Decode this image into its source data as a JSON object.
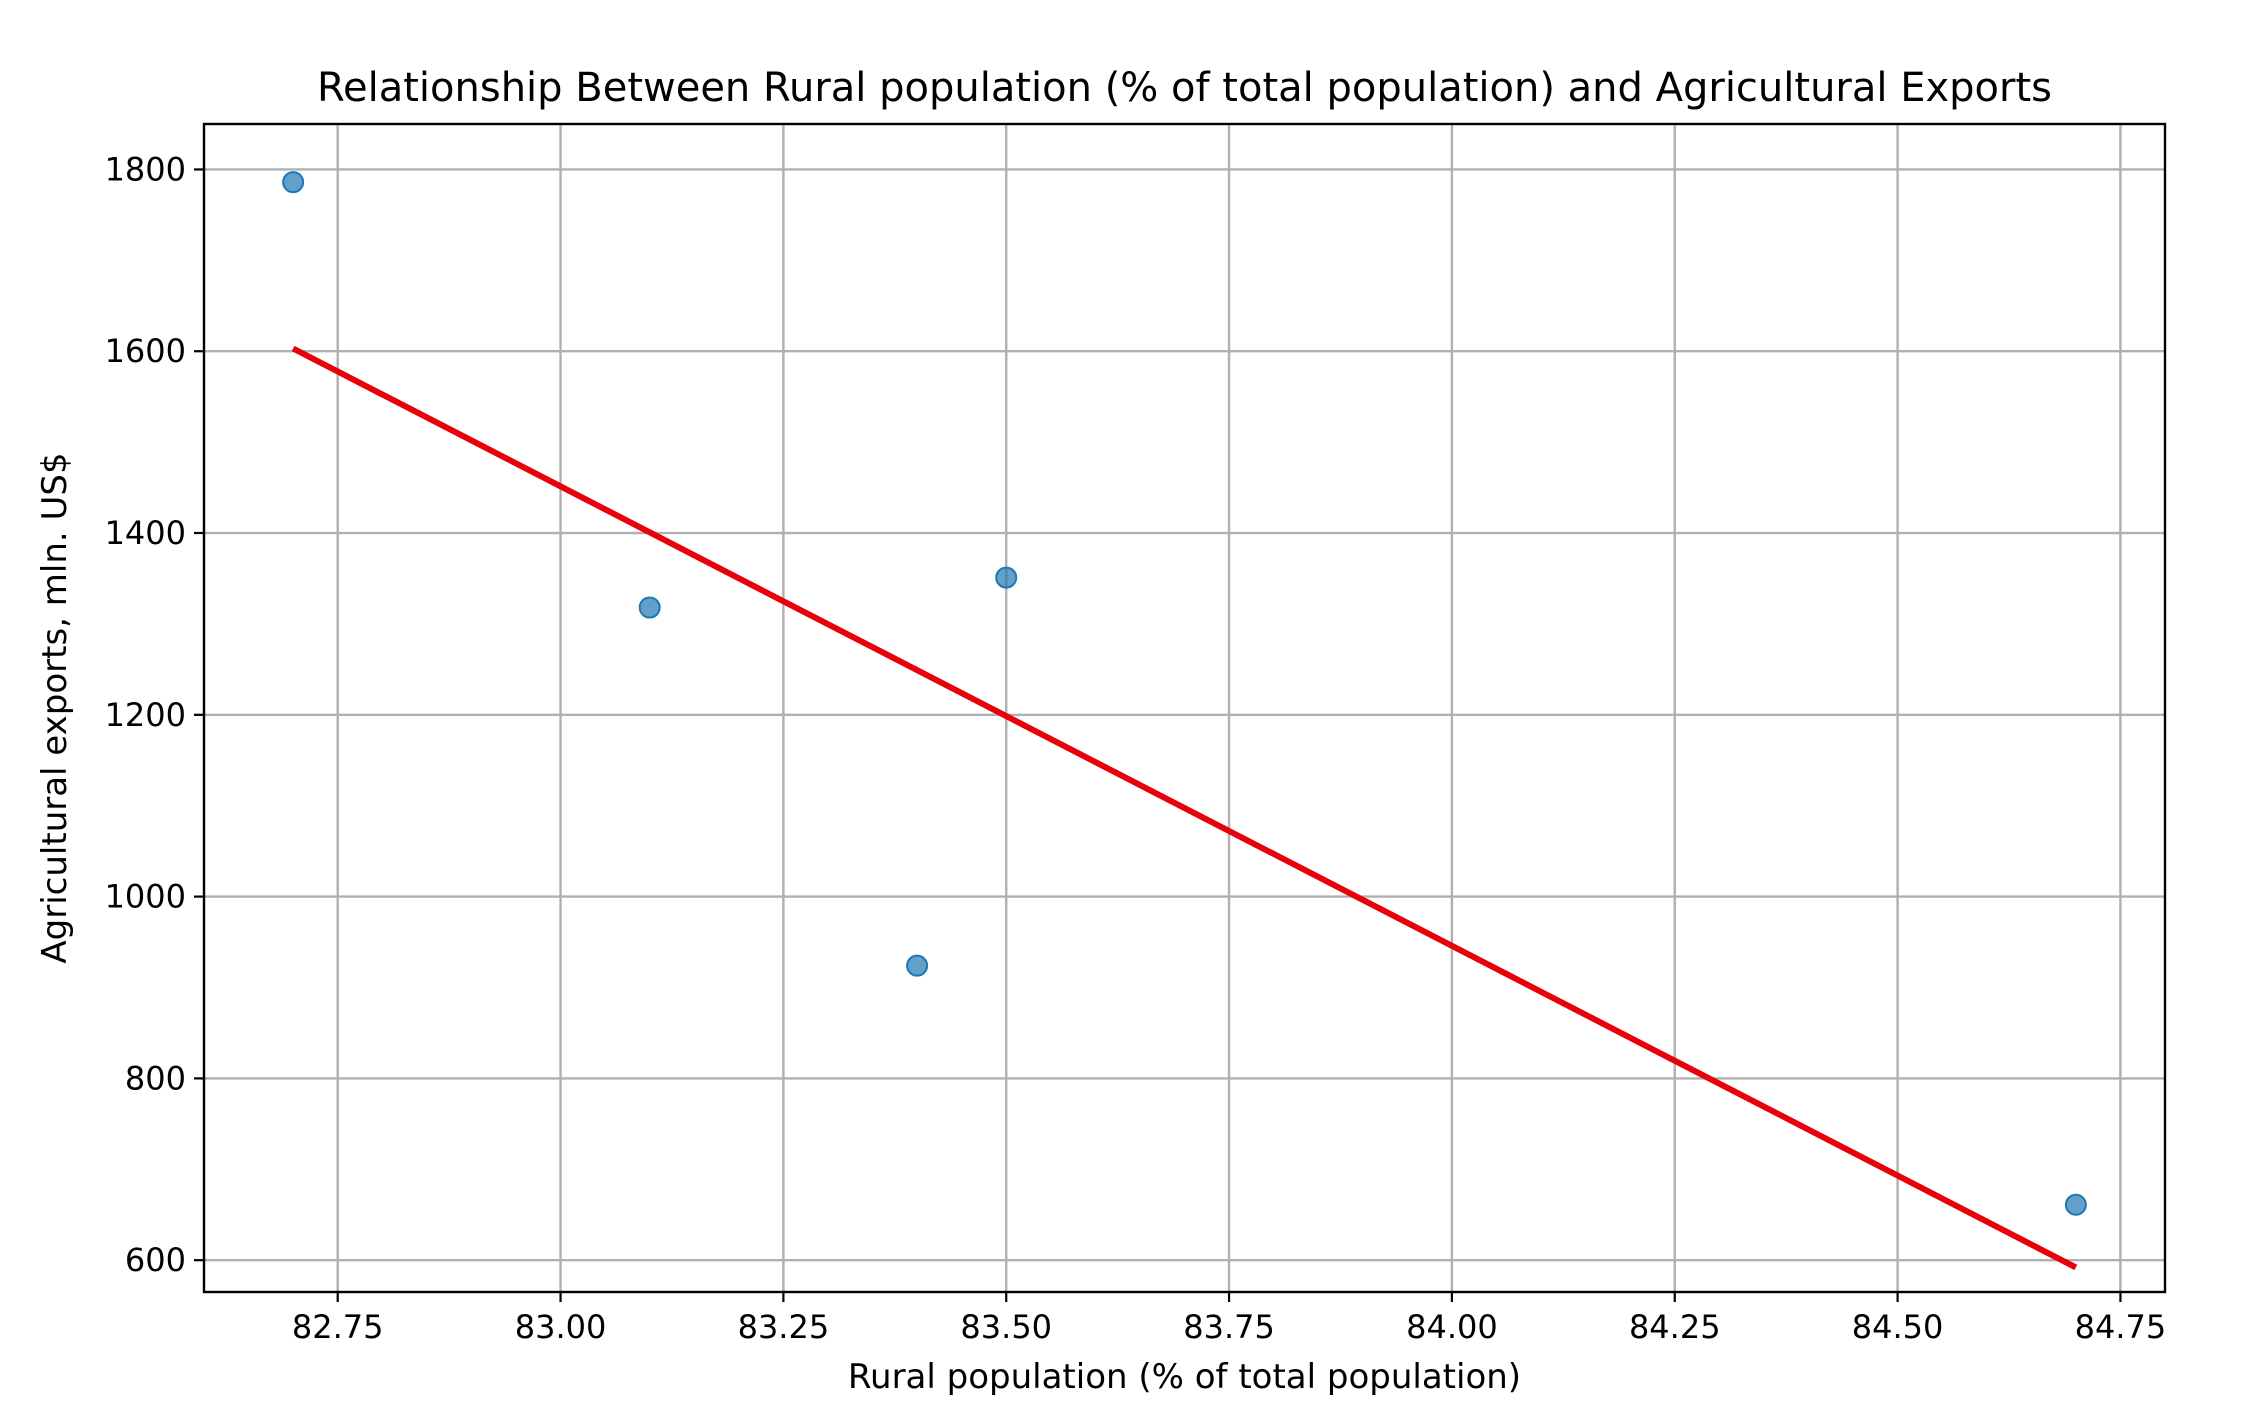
{
  "chart_data": {
    "type": "scatter",
    "title": "Relationship Between Rural population (% of total population) and Agricultural Exports",
    "xlabel": "Rural population (% of total population)",
    "ylabel": "Agricultural exports, mln. US$",
    "xlim": [
      82.6,
      84.8
    ],
    "ylim": [
      565,
      1850
    ],
    "x_ticks": [
      82.75,
      83.0,
      83.25,
      83.5,
      83.75,
      84.0,
      84.25,
      84.5,
      84.75
    ],
    "x_tick_labels": [
      "82.75",
      "83.00",
      "83.25",
      "83.50",
      "83.75",
      "84.00",
      "84.25",
      "84.50",
      "84.75"
    ],
    "y_ticks": [
      600,
      800,
      1000,
      1200,
      1400,
      1600,
      1800
    ],
    "y_tick_labels": [
      "600",
      "800",
      "1000",
      "1200",
      "1400",
      "1600",
      "1800"
    ],
    "grid": true,
    "points": [
      {
        "x": 82.7,
        "y": 1786
      },
      {
        "x": 83.1,
        "y": 1318
      },
      {
        "x": 83.4,
        "y": 924
      },
      {
        "x": 83.5,
        "y": 1351
      },
      {
        "x": 84.7,
        "y": 661
      }
    ],
    "trend_line": {
      "x": [
        82.7,
        84.7
      ],
      "y": [
        1603,
        592
      ]
    },
    "colors": {
      "points": "#1f77b4",
      "trend_line": "#e8000b"
    }
  }
}
